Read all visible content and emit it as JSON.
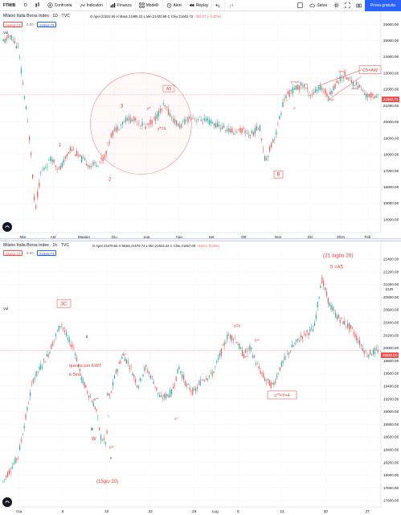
{
  "toolbar": {
    "symbol": "FTMIB",
    "interval": "D",
    "compare": "Confronta",
    "indicators": "Indicatori",
    "finance": "Finanza",
    "models": "Modelli",
    "alert": "Alert",
    "replay": "Replay",
    "save": "Salva",
    "trial": "Prova gratuita"
  },
  "chart_top": {
    "title": "Milano Italia Borsa Index · 1D · TVC",
    "ohlc": {
      "open_label": "O",
      "open": "Aper.21922.66",
      "high_label": "H",
      "high": "Mass.21985.23",
      "low_label": "L",
      "low": "Min.21420.89",
      "close_label": "C",
      "close": "Chiu.21662.73",
      "change": "−324.27 (−1.47%)"
    },
    "price_pill": "21662.73",
    "pill_zero": "0.00",
    "price_pill2": "21662.73",
    "vol": "Vol",
    "current_price_tag": "21662.73",
    "y_ticks": [
      "26000.00",
      "25000.00",
      "24000.00",
      "23000.00",
      "22000.00",
      "21000.00",
      "20000.00",
      "19000.00",
      "18000.00",
      "17000.00",
      "16000.00",
      "15000.00",
      "14000.00"
    ],
    "x_ticks": [
      "Mar",
      "Apr",
      "Maggio",
      "Giu",
      "Lug",
      "Ago",
      "Set",
      "Ott",
      "Nov",
      "Dic",
      "2021",
      "Feb"
    ],
    "annotations": {
      "a5": "A5",
      "c5aw": "C5=AW",
      "b": "B",
      "n1": "1",
      "n2": "2",
      "n3": "3",
      "x_star": "x*",
      "y_eq4": "y*=4",
      "y_star_red": "y*=red",
      "w_star": "w*",
      "w_star_b": "w*",
      "third": "3end",
      "second": "2end",
      "first": "1end",
      "x_small": "x",
      "w_small": "w"
    }
  },
  "chart_bottom": {
    "title": "Milano Italia Borsa Index · 1h · TVC",
    "ohlc": {
      "open_label": "O",
      "open": "Aper.21670.55",
      "high_label": "H",
      "high": "Mass.21679.74",
      "low_label": "L",
      "low": "Min.21623.23",
      "close_label": "C",
      "close": "Chiu.21667.09",
      "change": "−3.60 (−0.02%)"
    },
    "price_pill": "21662.73",
    "pill_zero": "0.00",
    "price_pill2": "21662.73",
    "vol": "Vol",
    "currency": "EUR",
    "current_price_tag": "19960.00",
    "y_ticks": [
      "21400.00",
      "21200.00",
      "21000.00",
      "20800.00",
      "20600.00",
      "20400.00",
      "20200.00",
      "20000.00",
      "19800.00",
      "19600.00",
      "19400.00",
      "19200.00",
      "19000.00",
      "18800.00",
      "18600.00",
      "18400.00",
      "18200.00",
      "18000.00",
      "17800.00",
      "17600.00"
    ],
    "x_ticks": [
      "Giu",
      "8",
      "15",
      "22",
      "29",
      "Lug",
      "6",
      "13",
      "20",
      "27"
    ],
    "annotations": {
      "c3": "3C",
      "ii": "ii",
      "ewt": "questa per EWT\nè 5ina",
      "iv": "iv",
      "iii": "iii",
      "W": "W",
      "a_stars": "a**",
      "b_stars": "b**",
      "v": "v",
      "date_15": "(15giu 20)",
      "w_star": "w*",
      "x_star": "x*",
      "y_eq_x": "y=x",
      "a_star2": "a**",
      "b_star2": "b**",
      "c_eq_y4": "c**=Y=4",
      "date_21": "(21 luglio 20)",
      "five_a5": "5 =A5"
    }
  },
  "colors": {
    "up": "#26a69a",
    "down": "#ef5350",
    "annotation": "#e53935",
    "accent": "#2962ff"
  }
}
